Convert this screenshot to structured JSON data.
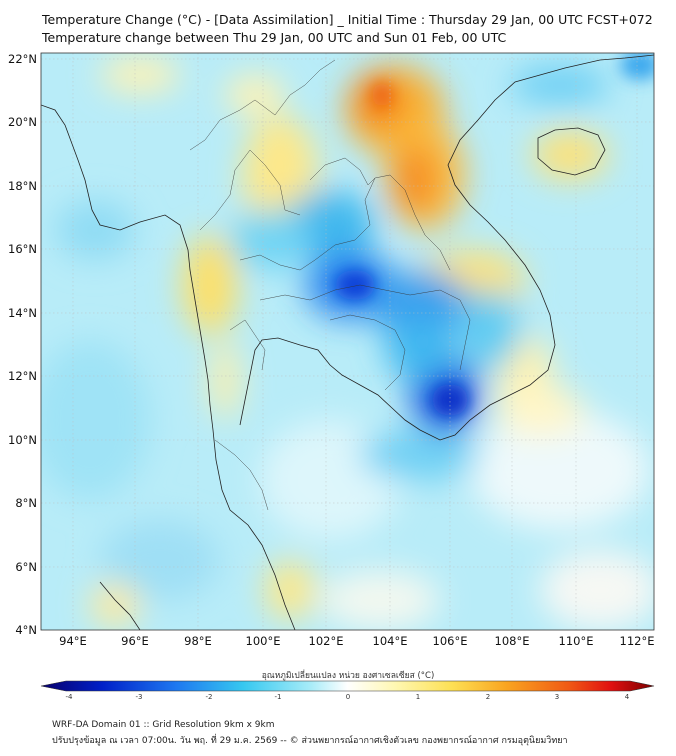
{
  "header": {
    "title_line1": "Temperature Change (°C) - [Data Assimilation] _ Initial Time : Thursday 29 Jan, 00 UTC FCST+072",
    "title_line2": "Temperature change between Thu 29 Jan, 00 UTC and Sun 01 Feb, 00 UTC"
  },
  "map": {
    "lat_labels": [
      "22°N",
      "20°N",
      "18°N",
      "16°N",
      "14°N",
      "12°N",
      "10°N",
      "8°N",
      "6°N",
      "4°N"
    ],
    "lon_labels": [
      "94°E",
      "96°E",
      "98°E",
      "100°E",
      "102°E",
      "104°E",
      "106°E",
      "108°E",
      "110°E",
      "112°E"
    ],
    "extent": {
      "lon_min": 93,
      "lon_max": 112.5,
      "lat_min": 4,
      "lat_max": 22.3
    }
  },
  "colorbar": {
    "title": "อุณหภูมิเปลี่ยนแปลง หน่วย องศาเซลเซียส (°C)",
    "ticks": [
      "-4",
      "-3",
      "-2",
      "-1",
      "0",
      "1",
      "2",
      "3",
      "4"
    ],
    "stops": [
      "#08006b",
      "#0020c8",
      "#1e78f0",
      "#36c8f0",
      "#a8ecf8",
      "#ffffff",
      "#fff7b0",
      "#fde054",
      "#f9a420",
      "#f05a14",
      "#e01010",
      "#7a0000"
    ]
  },
  "footer": {
    "line1": "WRF-DA Domain 01 :: Grid Resolution 9km x 9km",
    "line2": "ปรับปรุงข้อมูล ณ เวลา 07:00น. วัน พฤ. ที่ 29 ม.ค. 2569 -- © ส่วนพยากรณ์อากาศเชิงตัวเลข กองพยากรณ์อากาศ กรมอุตุนิยมวิทยา"
  }
}
